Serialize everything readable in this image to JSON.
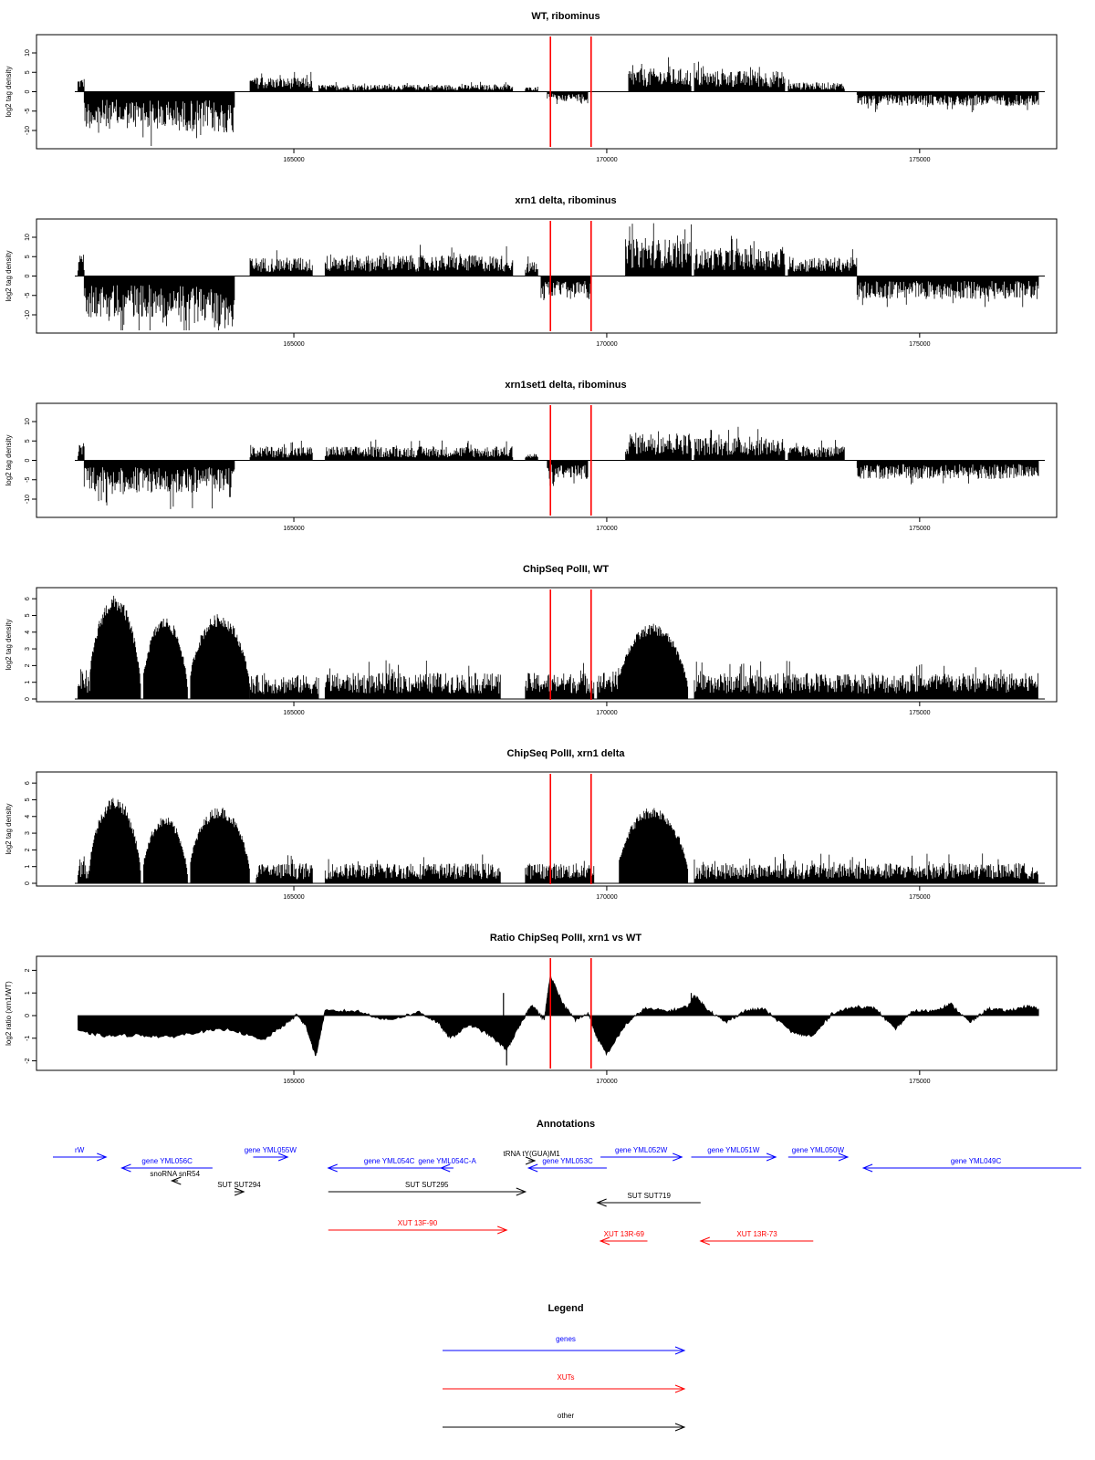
{
  "chart_data": [
    {
      "type": "bar",
      "title": "WT, ribominus",
      "xlabel": "",
      "ylabel": "log2 tag density",
      "xlim": [
        161500,
        177000
      ],
      "ylim": [
        -14,
        14
      ],
      "x_ticks": [
        165000,
        170000,
        175000
      ],
      "y_ticks": [
        -10,
        -5,
        0,
        5,
        10
      ],
      "markers": [
        169100,
        169750
      ],
      "segments": [
        {
          "x": [
            161550,
            161650
          ],
          "v": 3
        },
        {
          "x": [
            161650,
            162800
          ],
          "v": -8
        },
        {
          "x": [
            162800,
            163700
          ],
          "v": -8.5
        },
        {
          "x": [
            163700,
            164050
          ],
          "v": -9
        },
        {
          "x": [
            164300,
            165300
          ],
          "v": 3
        },
        {
          "x": [
            165400,
            168500
          ],
          "v": 1.5
        },
        {
          "x": [
            168700,
            168900
          ],
          "v": 1
        },
        {
          "x": [
            169050,
            169700
          ],
          "v": -2
        },
        {
          "x": [
            170350,
            171350
          ],
          "v": 5
        },
        {
          "x": [
            171400,
            172850
          ],
          "v": 4.5
        },
        {
          "x": [
            172900,
            173800
          ],
          "v": 2
        },
        {
          "x": [
            174000,
            176900
          ],
          "v": -3
        }
      ]
    },
    {
      "type": "bar",
      "title": "xrn1 delta, ribominus",
      "xlabel": "",
      "ylabel": "log2 tag density",
      "xlim": [
        161500,
        177000
      ],
      "ylim": [
        -14,
        14
      ],
      "x_ticks": [
        165000,
        170000,
        175000
      ],
      "y_ticks": [
        -10,
        -5,
        0,
        5,
        10
      ],
      "markers": [
        169100,
        169750
      ],
      "segments": [
        {
          "x": [
            161550,
            161650
          ],
          "v": 5
        },
        {
          "x": [
            161650,
            162800
          ],
          "v": -9
        },
        {
          "x": [
            162800,
            163700
          ],
          "v": -10
        },
        {
          "x": [
            163700,
            164050
          ],
          "v": -11
        },
        {
          "x": [
            164300,
            165300
          ],
          "v": 4
        },
        {
          "x": [
            165500,
            168500
          ],
          "v": 4.5
        },
        {
          "x": [
            168700,
            168900
          ],
          "v": 3
        },
        {
          "x": [
            168950,
            169750
          ],
          "v": -5
        },
        {
          "x": [
            170300,
            171350
          ],
          "v": 8
        },
        {
          "x": [
            171400,
            172850
          ],
          "v": 6
        },
        {
          "x": [
            172900,
            174000
          ],
          "v": 4
        },
        {
          "x": [
            174000,
            176900
          ],
          "v": -5
        }
      ]
    },
    {
      "type": "bar",
      "title": "xrn1set1 delta, ribominus",
      "xlabel": "",
      "ylabel": "log2 tag density",
      "xlim": [
        161500,
        177000
      ],
      "ylim": [
        -14,
        14
      ],
      "x_ticks": [
        165000,
        170000,
        175000
      ],
      "y_ticks": [
        -10,
        -5,
        0,
        5,
        10
      ],
      "markers": [
        169100,
        169750
      ],
      "segments": [
        {
          "x": [
            161550,
            161650
          ],
          "v": 4
        },
        {
          "x": [
            161650,
            162800
          ],
          "v": -7
        },
        {
          "x": [
            162800,
            163700
          ],
          "v": -7
        },
        {
          "x": [
            163700,
            164050
          ],
          "v": -8
        },
        {
          "x": [
            164300,
            165300
          ],
          "v": 3
        },
        {
          "x": [
            165500,
            168500
          ],
          "v": 3
        },
        {
          "x": [
            168700,
            168900
          ],
          "v": 1.5
        },
        {
          "x": [
            169050,
            169700
          ],
          "v": -4
        },
        {
          "x": [
            170300,
            171350
          ],
          "v": 6
        },
        {
          "x": [
            171400,
            172850
          ],
          "v": 5
        },
        {
          "x": [
            172900,
            173800
          ],
          "v": 3
        },
        {
          "x": [
            174000,
            176900
          ],
          "v": -4
        }
      ]
    },
    {
      "type": "bar",
      "title": "ChipSeq PolII, WT",
      "xlabel": "",
      "ylabel": "log2 tag density",
      "xlim": [
        161500,
        177000
      ],
      "ylim": [
        0,
        6.5
      ],
      "x_ticks": [
        165000,
        170000,
        175000
      ],
      "y_ticks": [
        0,
        1,
        2,
        3,
        4,
        5,
        6
      ],
      "markers": [
        169100,
        169750
      ],
      "segments": [
        {
          "x": [
            161550,
            161750
          ],
          "v": 1.5
        },
        {
          "x": [
            161750,
            162550
          ],
          "v": 6.2,
          "dome": true
        },
        {
          "x": [
            162600,
            163300
          ],
          "v": 4.9,
          "dome": true
        },
        {
          "x": [
            163350,
            164300
          ],
          "v": 5.1,
          "dome": true
        },
        {
          "x": [
            164300,
            165400
          ],
          "v": 1.2
        },
        {
          "x": [
            165500,
            168300
          ],
          "v": 1.3
        },
        {
          "x": [
            168700,
            169800
          ],
          "v": 1.3
        },
        {
          "x": [
            169850,
            170200
          ],
          "v": 1.4
        },
        {
          "x": [
            170200,
            171300
          ],
          "v": 4.5,
          "dome": true
        },
        {
          "x": [
            171400,
            176900
          ],
          "v": 1.3
        }
      ]
    },
    {
      "type": "bar",
      "title": "ChipSeq PolII, xrn1 delta",
      "xlabel": "",
      "ylabel": "log2 tag density",
      "xlim": [
        161500,
        177000
      ],
      "ylim": [
        0,
        6.5
      ],
      "x_ticks": [
        165000,
        170000,
        175000
      ],
      "y_ticks": [
        0,
        1,
        2,
        3,
        4,
        5,
        6
      ],
      "markers": [
        169100,
        169750
      ],
      "segments": [
        {
          "x": [
            161550,
            161750
          ],
          "v": 1.2
        },
        {
          "x": [
            161750,
            162550
          ],
          "v": 5.2,
          "dome": true
        },
        {
          "x": [
            162600,
            163300
          ],
          "v": 4.0,
          "dome": true
        },
        {
          "x": [
            163350,
            164300
          ],
          "v": 4.6,
          "dome": true
        },
        {
          "x": [
            164400,
            165300
          ],
          "v": 1.0
        },
        {
          "x": [
            165500,
            168300
          ],
          "v": 1.0
        },
        {
          "x": [
            168700,
            169800
          ],
          "v": 1.0
        },
        {
          "x": [
            170200,
            171300
          ],
          "v": 4.6,
          "dome": true
        },
        {
          "x": [
            171400,
            176900
          ],
          "v": 1.0
        }
      ]
    },
    {
      "type": "area",
      "title": "Ratio ChipSeq PolII, xrn1 vs WT",
      "xlabel": "",
      "ylabel": "log2 ratio (xrn1/WT)",
      "xlim": [
        161500,
        177000
      ],
      "ylim": [
        -2.3,
        2.5
      ],
      "x_ticks": [
        165000,
        170000,
        175000
      ],
      "y_ticks": [
        -2,
        -1,
        0,
        1,
        2
      ],
      "markers": [
        169100,
        169750
      ],
      "x": [
        161550,
        162000,
        162500,
        163000,
        163500,
        164000,
        164500,
        164900,
        165050,
        165200,
        165350,
        165500,
        166000,
        166500,
        167000,
        167300,
        167500,
        167800,
        168100,
        168400,
        168600,
        168800,
        169000,
        169100,
        169300,
        169500,
        169700,
        169850,
        170000,
        170300,
        170600,
        171000,
        171300,
        171400,
        171600,
        171900,
        172200,
        172500,
        173000,
        173300,
        173600,
        174000,
        174300,
        174600,
        174900,
        175200,
        175500,
        175800,
        176100,
        176400,
        176700,
        176900
      ],
      "values": [
        -0.7,
        -0.9,
        -0.85,
        -0.95,
        -0.7,
        -0.6,
        -1.1,
        -0.3,
        0.05,
        -0.5,
        -1.8,
        0.2,
        0.2,
        -0.2,
        0.15,
        -0.3,
        -1.0,
        -0.4,
        -0.8,
        -1.5,
        -0.5,
        0.5,
        -0.2,
        1.8,
        0.5,
        -0.2,
        0.1,
        -1.0,
        -1.7,
        -0.4,
        0.3,
        0.2,
        0.4,
        0.9,
        0.3,
        -0.3,
        0.2,
        0.3,
        -0.8,
        -0.9,
        0.1,
        0.4,
        0.3,
        -0.6,
        0.2,
        0.2,
        0.5,
        -0.3,
        0.3,
        0.2,
        0.4,
        0.3
      ]
    }
  ],
  "annotations": {
    "title": "Annotations",
    "xlim": [
      161500,
      177000
    ],
    "items": [
      {
        "label": "rW",
        "x": [
          161150,
          162000
        ],
        "row": 0,
        "dir": 1,
        "color": "#0000ff"
      },
      {
        "label": "gene YML056C",
        "x": [
          162250,
          163700
        ],
        "row": 1,
        "dir": -1,
        "color": "#0000ff"
      },
      {
        "label": "gene YML055W",
        "x": [
          164350,
          164900
        ],
        "row": 0,
        "dir": 1,
        "color": "#0000ff"
      },
      {
        "label": "gene YML054C",
        "x": [
          165550,
          167500
        ],
        "row": 1,
        "dir": -1,
        "color": "#0000ff"
      },
      {
        "label": "gene YML054C-A",
        "x": [
          167350,
          167550
        ],
        "row": 1,
        "dir": -1,
        "color": "#0000ff"
      },
      {
        "label": "gene YML053C",
        "x": [
          168750,
          170000
        ],
        "row": 1,
        "dir": -1,
        "color": "#0000ff"
      },
      {
        "label": "gene YML052W",
        "x": [
          169900,
          171200
        ],
        "row": 0,
        "dir": 1,
        "color": "#0000ff"
      },
      {
        "label": "gene YML051W",
        "x": [
          171350,
          172700
        ],
        "row": 0,
        "dir": 1,
        "color": "#0000ff"
      },
      {
        "label": "gene YML050W",
        "x": [
          172900,
          173850
        ],
        "row": 0,
        "dir": 1,
        "color": "#0000ff"
      },
      {
        "label": "gene YML049C",
        "x": [
          174100,
          177700
        ],
        "row": 1,
        "dir": -1,
        "color": "#0000ff"
      },
      {
        "label": "snoRNA snR54",
        "x": [
          163050,
          163150
        ],
        "row": 2,
        "dir": -1,
        "color": "#000000"
      },
      {
        "label": "tRNA tY(GUA)M1",
        "x": [
          168750,
          168850
        ],
        "row": 1.6,
        "dir": 1,
        "color": "#000000"
      },
      {
        "label": "SUT SUT294",
        "x": [
          164050,
          164200
        ],
        "row": 3,
        "dir": 1,
        "color": "#000000"
      },
      {
        "label": "SUT SUT295",
        "x": [
          165550,
          168700
        ],
        "row": 3,
        "dir": 1,
        "color": "#000000"
      },
      {
        "label": "SUT SUT719",
        "x": [
          169850,
          171500
        ],
        "row": 4,
        "dir": -1,
        "color": "#000000"
      },
      {
        "label": "XUT 13F-90",
        "x": [
          165550,
          168400
        ],
        "row": 6,
        "dir": 1,
        "color": "#ff0000"
      },
      {
        "label": "XUT 13R-69",
        "x": [
          169900,
          170650
        ],
        "row": 7,
        "dir": -1,
        "color": "#ff0000"
      },
      {
        "label": "XUT 13R-73",
        "x": [
          171500,
          173300
        ],
        "row": 7,
        "dir": -1,
        "color": "#ff0000"
      }
    ]
  },
  "legend": {
    "title": "Legend",
    "items": [
      {
        "label": "genes",
        "color": "#0000ff"
      },
      {
        "label": "XUTs",
        "color": "#ff0000"
      },
      {
        "label": "other",
        "color": "#000000"
      }
    ]
  }
}
